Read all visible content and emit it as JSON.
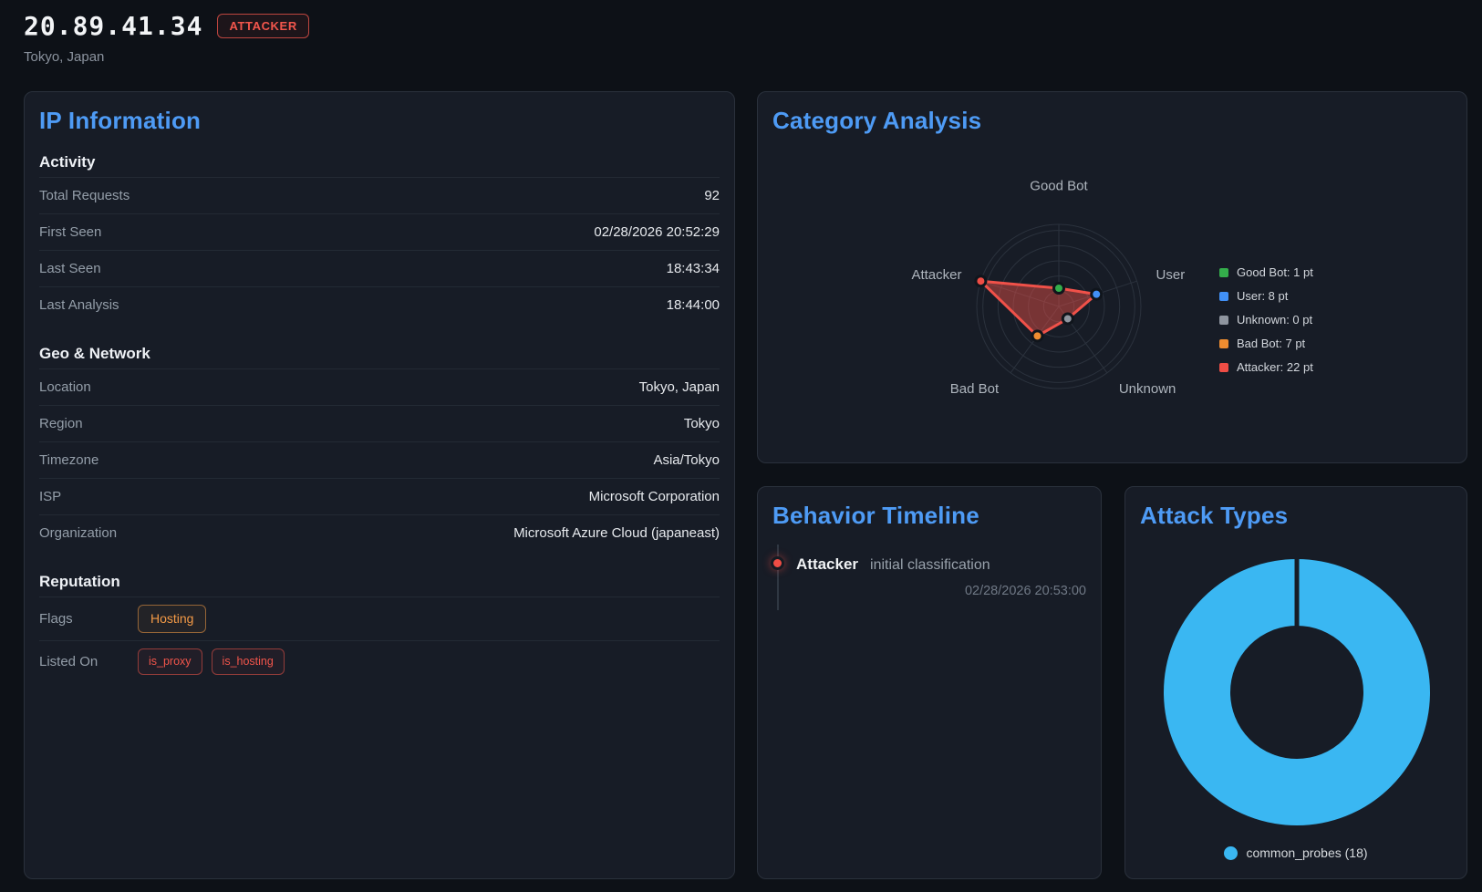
{
  "header": {
    "ip": "20.89.41.34",
    "badge": "ATTACKER",
    "subtitle": "Tokyo, Japan"
  },
  "ip_info": {
    "title": "IP Information",
    "sections": [
      {
        "heading": "Activity",
        "rows": [
          {
            "label": "Total Requests",
            "value": "92"
          },
          {
            "label": "First Seen",
            "value": "02/28/2026 20:52:29"
          },
          {
            "label": "Last Seen",
            "value": "18:43:34"
          },
          {
            "label": "Last Analysis",
            "value": "18:44:00"
          }
        ]
      },
      {
        "heading": "Geo & Network",
        "rows": [
          {
            "label": "Location",
            "value": "Tokyo, Japan"
          },
          {
            "label": "Region",
            "value": "Tokyo"
          },
          {
            "label": "Timezone",
            "value": "Asia/Tokyo"
          },
          {
            "label": "ISP",
            "value": "Microsoft Corporation"
          },
          {
            "label": "Organization",
            "value": "Microsoft Azure Cloud (japaneast)"
          }
        ]
      },
      {
        "heading": "Reputation",
        "rows": [
          {
            "label": "Flags",
            "badges": [
              {
                "text": "Hosting",
                "variant": "orange"
              }
            ]
          },
          {
            "label": "Listed On",
            "badges": [
              {
                "text": "is_proxy",
                "variant": "red"
              },
              {
                "text": "is_hosting",
                "variant": "red"
              }
            ]
          }
        ]
      }
    ]
  },
  "category_analysis": {
    "title": "Category Analysis"
  },
  "behavior_timeline": {
    "title": "Behavior Timeline",
    "events": [
      {
        "category": "Attacker",
        "description": "initial classification",
        "timestamp": "02/28/2026 20:53:00",
        "color": "#ef4d45"
      }
    ]
  },
  "attack_types": {
    "title": "Attack Types"
  },
  "chart_data": [
    {
      "panel": "category_analysis",
      "type": "radar",
      "categories": [
        "Good Bot",
        "User",
        "Unknown",
        "Bad Bot",
        "Attacker"
      ],
      "values": [
        1,
        8,
        0,
        7,
        22
      ],
      "unit": "pt",
      "point_colors": [
        "#34ae4b",
        "#4190f7",
        "#8f959f",
        "#ef8d30",
        "#ef4d45"
      ],
      "legend": [
        "Good Bot: 1 pt",
        "User: 8 pt",
        "Unknown: 0 pt",
        "Bad Bot: 7 pt",
        "Attacker: 22 pt"
      ],
      "series_color": "#f05149",
      "fill_color": "rgba(240,81,73,0.45)",
      "grid_color": "#2b323d",
      "scale": {
        "min": -5,
        "max": 22,
        "ticks": [
          0,
          5,
          10,
          15,
          20,
          22
        ]
      },
      "legend_position": "right",
      "grid": true
    },
    {
      "panel": "attack_types",
      "type": "donut",
      "segments": [
        {
          "label": "common_probes",
          "value": 18,
          "color": "#3ab7f2"
        }
      ],
      "legend": [
        "common_probes (18)"
      ],
      "legend_position": "bottom"
    }
  ]
}
